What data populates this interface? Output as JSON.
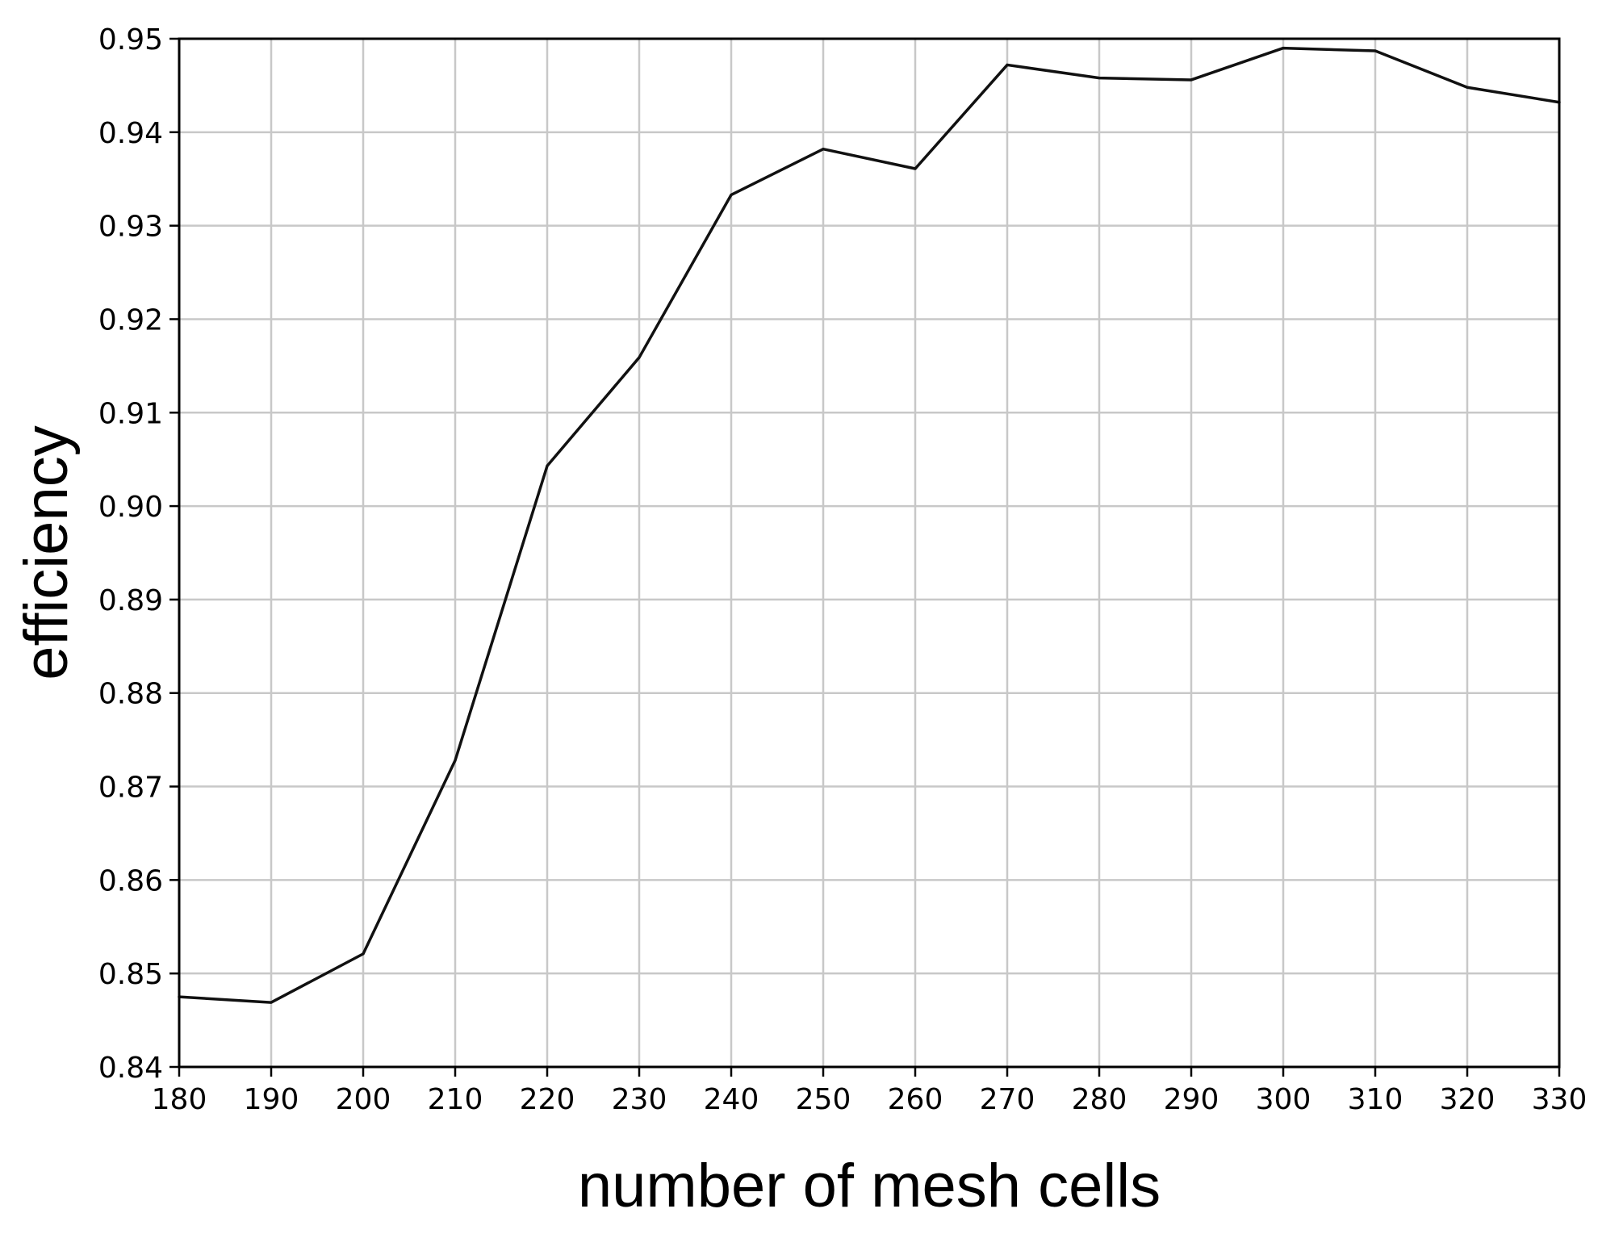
{
  "chart_data": {
    "type": "line",
    "title": "",
    "xlabel": "number of mesh cells",
    "ylabel": "efficiency",
    "xlim": [
      180,
      330
    ],
    "ylim": [
      0.84,
      0.95
    ],
    "xticks": [
      180,
      190,
      200,
      210,
      220,
      230,
      240,
      250,
      260,
      270,
      280,
      290,
      300,
      310,
      320,
      330
    ],
    "yticks": [
      0.84,
      0.85,
      0.86,
      0.87,
      0.88,
      0.89,
      0.9,
      0.91,
      0.92,
      0.93,
      0.94,
      0.95
    ],
    "ytick_labels": [
      "0.84",
      "0.85",
      "0.86",
      "0.87",
      "0.88",
      "0.89",
      "0.90",
      "0.91",
      "0.92",
      "0.93",
      "0.94",
      "0.95"
    ],
    "grid": true,
    "legend": "none",
    "series": [
      {
        "color": "#111111",
        "x": [
          180,
          190,
          200,
          210,
          220,
          230,
          240,
          250,
          260,
          270,
          280,
          290,
          300,
          310,
          320,
          330
        ],
        "y": [
          0.8475,
          0.8469,
          0.8521,
          0.8728,
          0.9043,
          0.9159,
          0.9333,
          0.9382,
          0.9361,
          0.9472,
          0.9458,
          0.9456,
          0.949,
          0.9487,
          0.9448,
          0.9432
        ]
      }
    ]
  }
}
